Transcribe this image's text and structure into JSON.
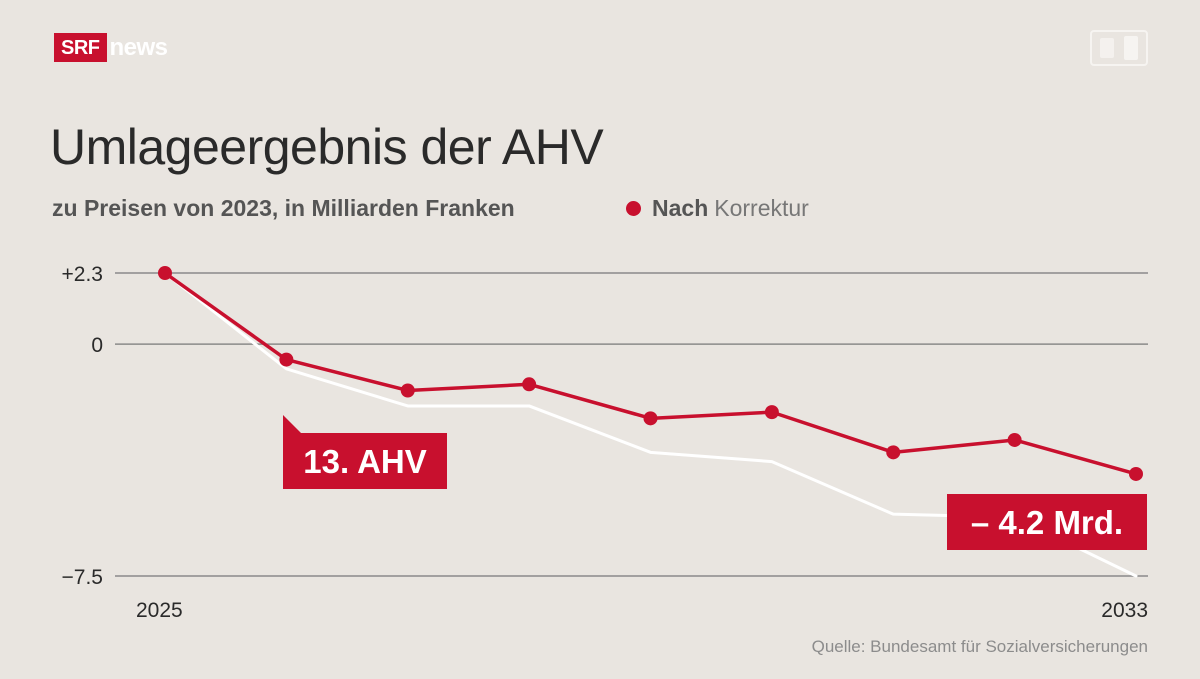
{
  "brand": {
    "logo_badge": "SRF",
    "logo_text": "news"
  },
  "colors": {
    "accent": "#c8102e",
    "background": "#e9e5e0",
    "grid": "#8a8a8a",
    "before_line": "#ffffff"
  },
  "chart_data": {
    "type": "line",
    "title": "Umlageergebnis der AHV",
    "subtitle": "zu Preisen von 2023, in Milliarden Franken",
    "legend": {
      "bold": "Nach",
      "text": "Korrektur",
      "placement": "top-right"
    },
    "x": [
      2025,
      2026,
      2027,
      2028,
      2029,
      2030,
      2031,
      2032,
      2033
    ],
    "x_tick_labels": [
      "2025",
      "2033"
    ],
    "x_range": [
      2025,
      2033
    ],
    "y_tick_labels": [
      "+2.3",
      "0",
      "−7.5"
    ],
    "y_ticks": [
      2.3,
      0,
      -7.5
    ],
    "ylim": [
      -7.5,
      2.3
    ],
    "grid": true,
    "series": [
      {
        "name": "Nach Korrektur",
        "color": "#c8102e",
        "markers": true,
        "values": [
          2.3,
          -0.5,
          -1.5,
          -1.3,
          -2.4,
          -2.2,
          -3.5,
          -3.1,
          -4.2
        ]
      },
      {
        "name": "",
        "color": "#ffffff",
        "markers": false,
        "values": [
          2.3,
          -0.8,
          -2.0,
          -2.0,
          -3.5,
          -3.8,
          -5.5,
          -5.6,
          -7.5
        ]
      }
    ],
    "annotations": [
      {
        "text": "13. AHV",
        "x": 2026,
        "series": 0
      },
      {
        "text": "– 4.2 Mrd.",
        "x": 2033,
        "series": 0
      }
    ]
  },
  "source": "Quelle: Bundesamt für Sozialversicherungen"
}
